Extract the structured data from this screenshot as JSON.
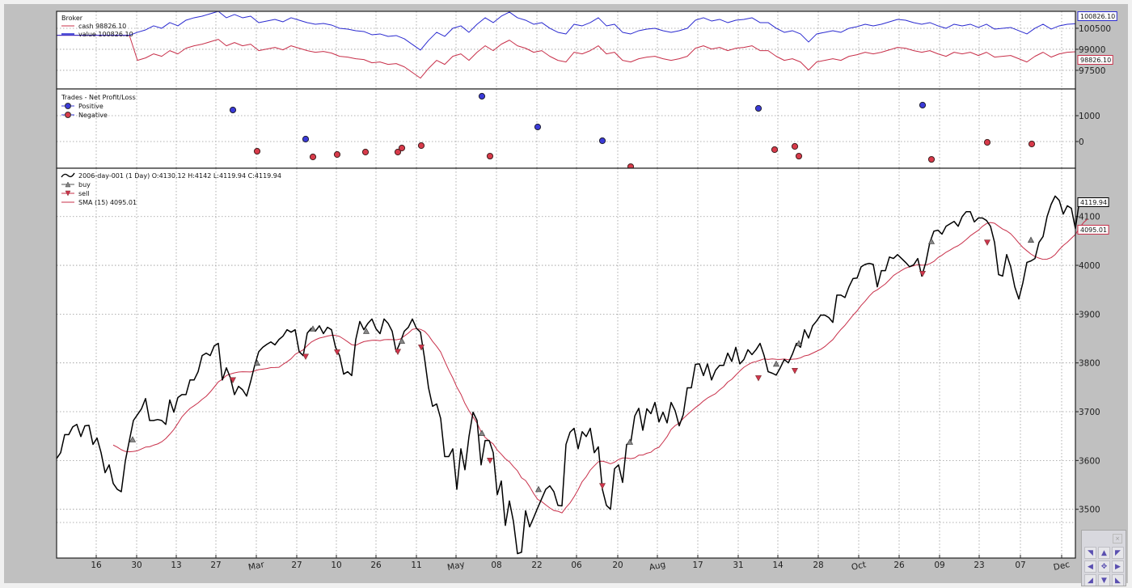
{
  "chart_data": [
    {
      "type": "line",
      "title": "Broker",
      "legend": [
        {
          "label": "cash 98826.10",
          "color": "#c8304a"
        },
        {
          "label": "value 100826.10",
          "color": "#2a2ad0"
        }
      ],
      "yticks": [
        97500,
        99000,
        100500
      ],
      "ylim": [
        96170,
        101710
      ],
      "last_labels": {
        "value": "100826.10",
        "cash": "98826.10"
      },
      "cash_offset_after_entry": 2000,
      "entry_index": 10,
      "value": [
        100000,
        100000,
        100000,
        100000,
        100000,
        100000,
        100000,
        100000,
        100000,
        100000,
        100212,
        100385,
        100674,
        100500,
        100904,
        100674,
        101077,
        101251,
        101366,
        101539,
        101712,
        101251,
        101481,
        101251,
        101366,
        100904,
        101020,
        101135,
        100962,
        101251,
        101077,
        100904,
        100789,
        100847,
        100731,
        100500,
        100443,
        100327,
        100270,
        100039,
        100097,
        99923,
        99981,
        99750,
        99346,
        98943,
        99635,
        100212,
        99923,
        100500,
        100674,
        100212,
        100789,
        101251,
        100904,
        101366,
        101654,
        101251,
        101077,
        100789,
        100904,
        100500,
        100212,
        100097,
        100789,
        100674,
        100904,
        101251,
        100674,
        100789,
        100212,
        100097,
        100327,
        100443,
        100500,
        100327,
        100212,
        100327,
        100500,
        101077,
        101251,
        101020,
        101135,
        100904,
        101077,
        101135,
        101251,
        100904,
        100904,
        100500,
        100212,
        100327,
        100097,
        99520,
        100097,
        100212,
        100327,
        100212,
        100500,
        100616,
        100789,
        100674,
        100789,
        100962,
        101135,
        101077,
        100904,
        100789,
        100904,
        100674,
        100500,
        100789,
        100674,
        100789,
        100558,
        100789,
        100443,
        100500,
        100558,
        100327,
        100097,
        100500,
        100789,
        100443,
        100674,
        100789,
        100826
      ]
    },
    {
      "type": "scatter",
      "title": "Trades - Net Profit/Loss",
      "legend": [
        {
          "label": "Positive",
          "color": "#3a3ad8"
        },
        {
          "label": "Negative",
          "color": "#d83a4a"
        }
      ],
      "yticks": [
        1000,
        0
      ],
      "ylim": [
        -1030,
        2030
      ],
      "positive": [
        {
          "day": 43.6,
          "pnl": 1219
        },
        {
          "day": 61.6,
          "pnl": 94
        },
        {
          "day": 105.2,
          "pnl": 1750
        },
        {
          "day": 119,
          "pnl": 563
        },
        {
          "day": 135,
          "pnl": 31
        },
        {
          "day": 173.6,
          "pnl": 1281
        },
        {
          "day": 214.2,
          "pnl": 1406
        }
      ],
      "negative": [
        {
          "day": 49.6,
          "pnl": -375
        },
        {
          "day": 63.4,
          "pnl": -594
        },
        {
          "day": 69.4,
          "pnl": -500
        },
        {
          "day": 76.4,
          "pnl": -406
        },
        {
          "day": 84.4,
          "pnl": -406
        },
        {
          "day": 85.4,
          "pnl": -250
        },
        {
          "day": 90.2,
          "pnl": -156
        },
        {
          "day": 107.2,
          "pnl": -563
        },
        {
          "day": 142,
          "pnl": -969
        },
        {
          "day": 177.6,
          "pnl": -313
        },
        {
          "day": 182.6,
          "pnl": -188
        },
        {
          "day": 183.6,
          "pnl": -563
        },
        {
          "day": 216.4,
          "pnl": -688
        },
        {
          "day": 230.2,
          "pnl": -31
        },
        {
          "day": 241.2,
          "pnl": -94
        }
      ]
    },
    {
      "type": "line",
      "title": "2006-day-001",
      "legend": [
        {
          "label": "2006-day-001 (1 Day) O:4130.12 H:4142 L:4119.94 C:4119.94",
          "color": "#000000"
        },
        {
          "label": "buy",
          "color": "#777777"
        },
        {
          "label": "sell",
          "color": "#c8304a"
        },
        {
          "label": "SMA (15) 4095.01",
          "color": "#c8304a"
        }
      ],
      "yticks": [
        3500,
        3600,
        3700,
        3800,
        3900,
        4000,
        4100
      ],
      "ylim": [
        3400,
        4199
      ],
      "last_labels": {
        "close": "4119.94",
        "sma": "4095.01"
      },
      "sma_period": 15,
      "close": [
        3604,
        3616,
        3653,
        3653,
        3669,
        3674,
        3649,
        3671,
        3672,
        3633,
        3646,
        3616,
        3575,
        3591,
        3553,
        3541,
        3536,
        3599,
        3641,
        3682,
        3694,
        3706,
        3727,
        3682,
        3682,
        3684,
        3682,
        3674,
        3724,
        3699,
        3729,
        3735,
        3735,
        3765,
        3765,
        3782,
        3815,
        3820,
        3815,
        3835,
        3840,
        3765,
        3790,
        3769,
        3735,
        3752,
        3745,
        3732,
        3762,
        3795,
        3823,
        3832,
        3838,
        3843,
        3837,
        3848,
        3855,
        3868,
        3863,
        3868,
        3823,
        3815,
        3861,
        3871,
        3865,
        3876,
        3860,
        3873,
        3868,
        3832,
        3815,
        3777,
        3782,
        3774,
        3848,
        3885,
        3868,
        3881,
        3890,
        3870,
        3860,
        3890,
        3881,
        3865,
        3823,
        3842,
        3865,
        3873,
        3890,
        3871,
        3863,
        3810,
        3749,
        3711,
        3716,
        3686,
        3608,
        3608,
        3624,
        3541,
        3624,
        3581,
        3649,
        3699,
        3682,
        3591,
        3641,
        3641,
        3616,
        3530,
        3558,
        3467,
        3517,
        3475,
        3409,
        3412,
        3497,
        3464,
        3483,
        3503,
        3522,
        3541,
        3548,
        3536,
        3508,
        3507,
        3633,
        3658,
        3666,
        3624,
        3659,
        3649,
        3666,
        3616,
        3628,
        3541,
        3508,
        3500,
        3583,
        3591,
        3555,
        3633,
        3636,
        3691,
        3707,
        3662,
        3706,
        3696,
        3719,
        3679,
        3699,
        3677,
        3719,
        3702,
        3671,
        3694,
        3749,
        3749,
        3797,
        3798,
        3774,
        3798,
        3765,
        3785,
        3795,
        3795,
        3820,
        3803,
        3832,
        3798,
        3807,
        3827,
        3817,
        3827,
        3840,
        3815,
        3782,
        3779,
        3775,
        3790,
        3807,
        3800,
        3818,
        3840,
        3832,
        3868,
        3851,
        3876,
        3886,
        3898,
        3898,
        3893,
        3883,
        3939,
        3939,
        3934,
        3956,
        3973,
        3974,
        3997,
        4002,
        4004,
        4002,
        3956,
        3989,
        3989,
        4017,
        4014,
        4022,
        4014,
        4006,
        3997,
        4001,
        4014,
        3978,
        4006,
        4047,
        4070,
        4072,
        4064,
        4080,
        4085,
        4090,
        4080,
        4100,
        4110,
        4110,
        4089,
        4097,
        4097,
        4092,
        4080,
        4047,
        3981,
        3978,
        4022,
        3997,
        3956,
        3931,
        3964,
        4006,
        4009,
        4014,
        4047,
        4059,
        4100,
        4125,
        4142,
        4133,
        4105,
        4122,
        4117,
        4075,
        4133,
        4125,
        4120
      ],
      "buy": [
        {
          "day": 18.8,
          "price": 3643
        },
        {
          "day": 49.6,
          "price": 3800
        },
        {
          "day": 63.4,
          "price": 3870
        },
        {
          "day": 76.6,
          "price": 3865
        },
        {
          "day": 85.4,
          "price": 3845
        },
        {
          "day": 105.2,
          "price": 3656
        },
        {
          "day": 119.2,
          "price": 3541
        },
        {
          "day": 141.8,
          "price": 3638
        },
        {
          "day": 178,
          "price": 3798
        },
        {
          "day": 183.6,
          "price": 3840
        },
        {
          "day": 216.4,
          "price": 4049
        },
        {
          "day": 241,
          "price": 4052
        }
      ],
      "sell": [
        {
          "day": 43.6,
          "price": 3765
        },
        {
          "day": 61.6,
          "price": 3813
        },
        {
          "day": 69.4,
          "price": 3822
        },
        {
          "day": 84.4,
          "price": 3823
        },
        {
          "day": 90.2,
          "price": 3832
        },
        {
          "day": 107.2,
          "price": 3600
        },
        {
          "day": 135,
          "price": 3548
        },
        {
          "day": 173.6,
          "price": 3769
        },
        {
          "day": 182.6,
          "price": 3784
        },
        {
          "day": 214.2,
          "price": 3983
        },
        {
          "day": 230.2,
          "price": 4047
        }
      ],
      "xticks": [
        {
          "day": 9.8,
          "label": "16"
        },
        {
          "day": 19.8,
          "label": "30"
        },
        {
          "day": 29.6,
          "label": "13"
        },
        {
          "day": 39.4,
          "label": "27"
        },
        {
          "day": 49.4,
          "label": "Mar",
          "month": true
        },
        {
          "day": 59.4,
          "label": "27"
        },
        {
          "day": 69.2,
          "label": "10"
        },
        {
          "day": 79,
          "label": "26"
        },
        {
          "day": 89,
          "label": "11"
        },
        {
          "day": 98.8,
          "label": "May",
          "month": true
        },
        {
          "day": 108.8,
          "label": "08"
        },
        {
          "day": 118.8,
          "label": "22"
        },
        {
          "day": 128.6,
          "label": "06"
        },
        {
          "day": 138.8,
          "label": "20"
        },
        {
          "day": 148.6,
          "label": "Aug",
          "month": true
        },
        {
          "day": 158.6,
          "label": "17"
        },
        {
          "day": 168.6,
          "label": "31"
        },
        {
          "day": 178.4,
          "label": "14"
        },
        {
          "day": 188.4,
          "label": "28"
        },
        {
          "day": 198.4,
          "label": "Oct",
          "month": true
        },
        {
          "day": 208.4,
          "label": "26"
        },
        {
          "day": 218.4,
          "label": "09"
        },
        {
          "day": 228.2,
          "label": "23"
        },
        {
          "day": 238.4,
          "label": "07"
        },
        {
          "day": 248.6,
          "label": "Dec",
          "month": true
        }
      ]
    }
  ],
  "toolbar": {
    "close_label": "×",
    "buttons": [
      "◥",
      "▲",
      "◤",
      "◀",
      "✥",
      "▶",
      "◢",
      "▼",
      "◣"
    ]
  }
}
